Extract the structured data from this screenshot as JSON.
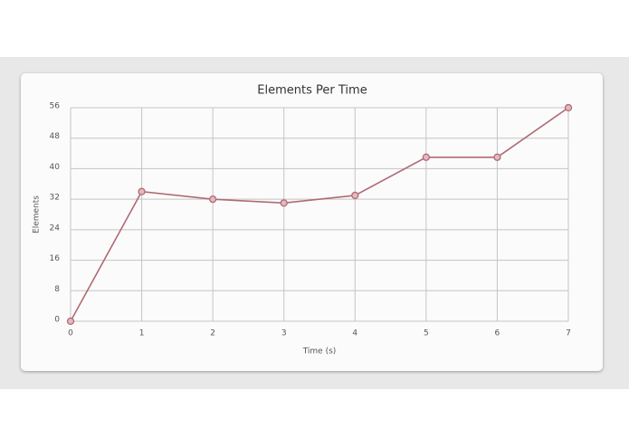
{
  "chart_data": {
    "type": "line",
    "title": "Elements Per Time",
    "x_label": "Time (s)",
    "y_label": "Elements",
    "x": [
      0,
      1,
      2,
      3,
      4,
      5,
      6,
      7
    ],
    "series": [
      {
        "name": "Elements",
        "color": "#b06a74",
        "values": [
          0,
          34,
          32,
          31,
          33,
          43,
          43,
          56
        ]
      }
    ],
    "xlim": [
      0,
      7
    ],
    "xticks": [
      0,
      1,
      2,
      3,
      4,
      5,
      6,
      7
    ],
    "ylim": [
      0,
      56
    ],
    "yticks": [
      0,
      8,
      16,
      24,
      32,
      40,
      48,
      56
    ],
    "grid": true
  }
}
